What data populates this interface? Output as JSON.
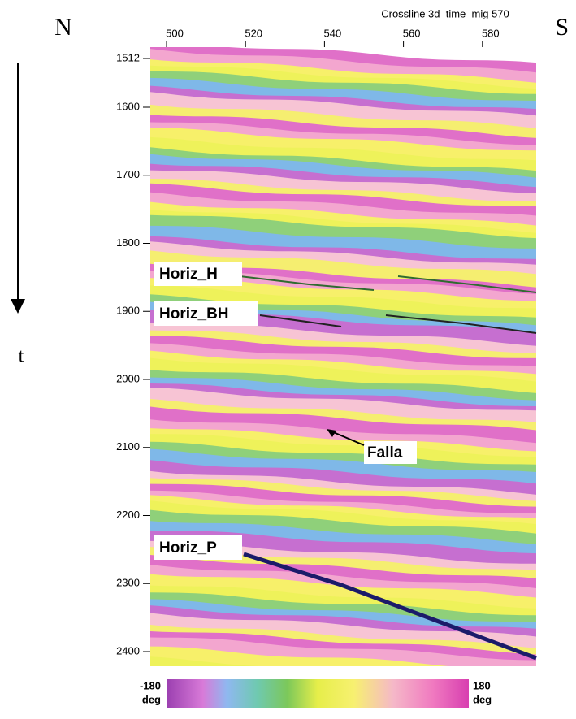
{
  "labels": {
    "north": "N",
    "south": "S",
    "time": "t"
  },
  "section_title": "Crossline 3d_time_mig 570",
  "x_ticks": [
    500,
    520,
    540,
    560,
    580
  ],
  "y_ticks": [
    1512,
    1600,
    1700,
    1800,
    1900,
    2000,
    2100,
    2200,
    2300,
    2400
  ],
  "horizons": [
    "Horiz_H",
    "Horiz_BH",
    "Horiz_P"
  ],
  "fault_label": "Falla",
  "colorbar": {
    "min": "-180",
    "max": "180",
    "unit": "deg"
  }
}
